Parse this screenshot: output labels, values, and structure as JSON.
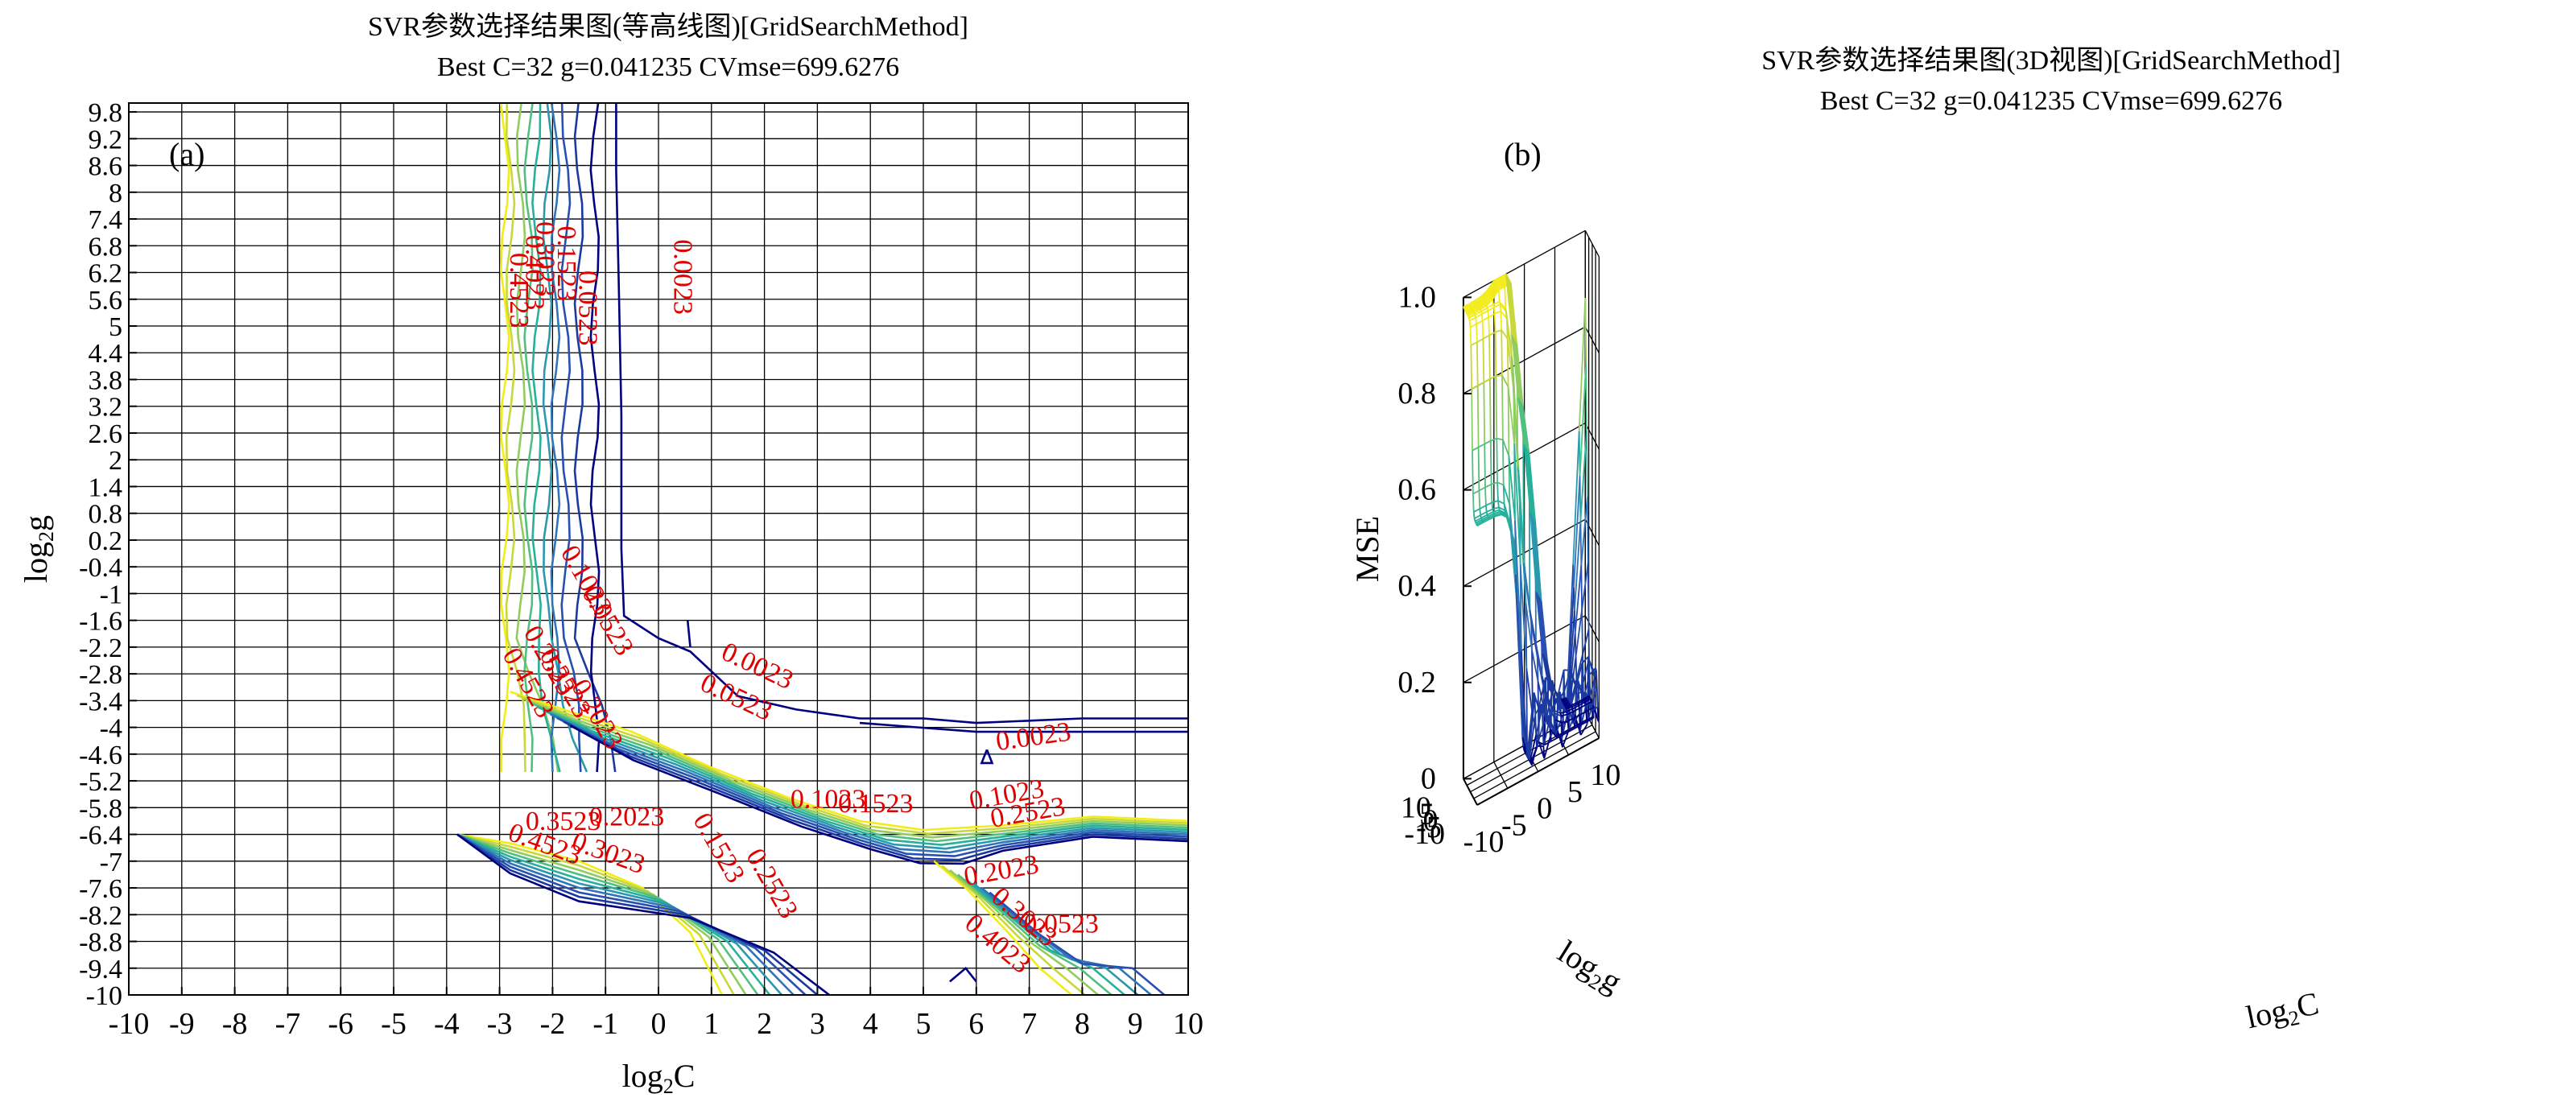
{
  "chart_data": [
    {
      "type": "contour",
      "panel_label": "(a)",
      "title": "SVR参数选择结果图(等高线图)[GridSearchMethod]",
      "subtitle": "Best C=32 g=0.041235 CVmse=699.6276",
      "xlabel": "log2C",
      "ylabel": "log2g",
      "xlim": [
        -10,
        10
      ],
      "ylim": [
        -10,
        10
      ],
      "grid": true,
      "x_ticks": [
        "-10",
        "-9",
        "-8",
        "-7",
        "-6",
        "-5",
        "-4",
        "-3",
        "-2",
        "-1",
        "0",
        "1",
        "2",
        "3",
        "4",
        "5",
        "6",
        "7",
        "8",
        "9",
        "10"
      ],
      "y_ticks": [
        "9.8",
        "9.2",
        "8.6",
        "8",
        "7.4",
        "6.8",
        "6.2",
        "5.6",
        "5",
        "4.4",
        "3.8",
        "3.2",
        "2.6",
        "2",
        "1.4",
        "0.8",
        "0.2",
        "-0.4",
        "-1",
        "-1.6",
        "-2.2",
        "-2.8",
        "-3.4",
        "-4",
        "-4.6",
        "-5.2",
        "-5.8",
        "-6.4",
        "-7",
        "-7.6",
        "-8.2",
        "-8.8",
        "-9.4",
        "-10"
      ],
      "contour_levels": [
        0.0023,
        0.0523,
        0.1023,
        0.1523,
        0.2023,
        0.2523,
        0.3023,
        0.3523,
        0.4023,
        0.4523
      ],
      "best_point": {
        "log2C": 5,
        "log2g": -4.6,
        "mse": 699.6276
      }
    },
    {
      "type": "surface3d",
      "panel_label": "(b)",
      "title": "SVR参数选择结果图(3D视图)[GridSearchMethod]",
      "subtitle": "Best C=32 g=0.041235 CVmse=699.6276",
      "xlabel": "log2C",
      "ylabel": "log2g",
      "zlabel": "MSE",
      "xlim": [
        -10,
        10
      ],
      "ylim": [
        -10,
        10
      ],
      "zlim": [
        0,
        1.0
      ],
      "grid": true,
      "z_ticks": [
        "0",
        "0.2",
        "0.4",
        "0.6",
        "0.8",
        "1.0"
      ],
      "x_ticks": [
        "-10",
        "-5",
        "0",
        "5",
        "10"
      ],
      "y_ticks": [
        "10",
        "5",
        "0",
        "-5",
        "-10"
      ]
    }
  ]
}
